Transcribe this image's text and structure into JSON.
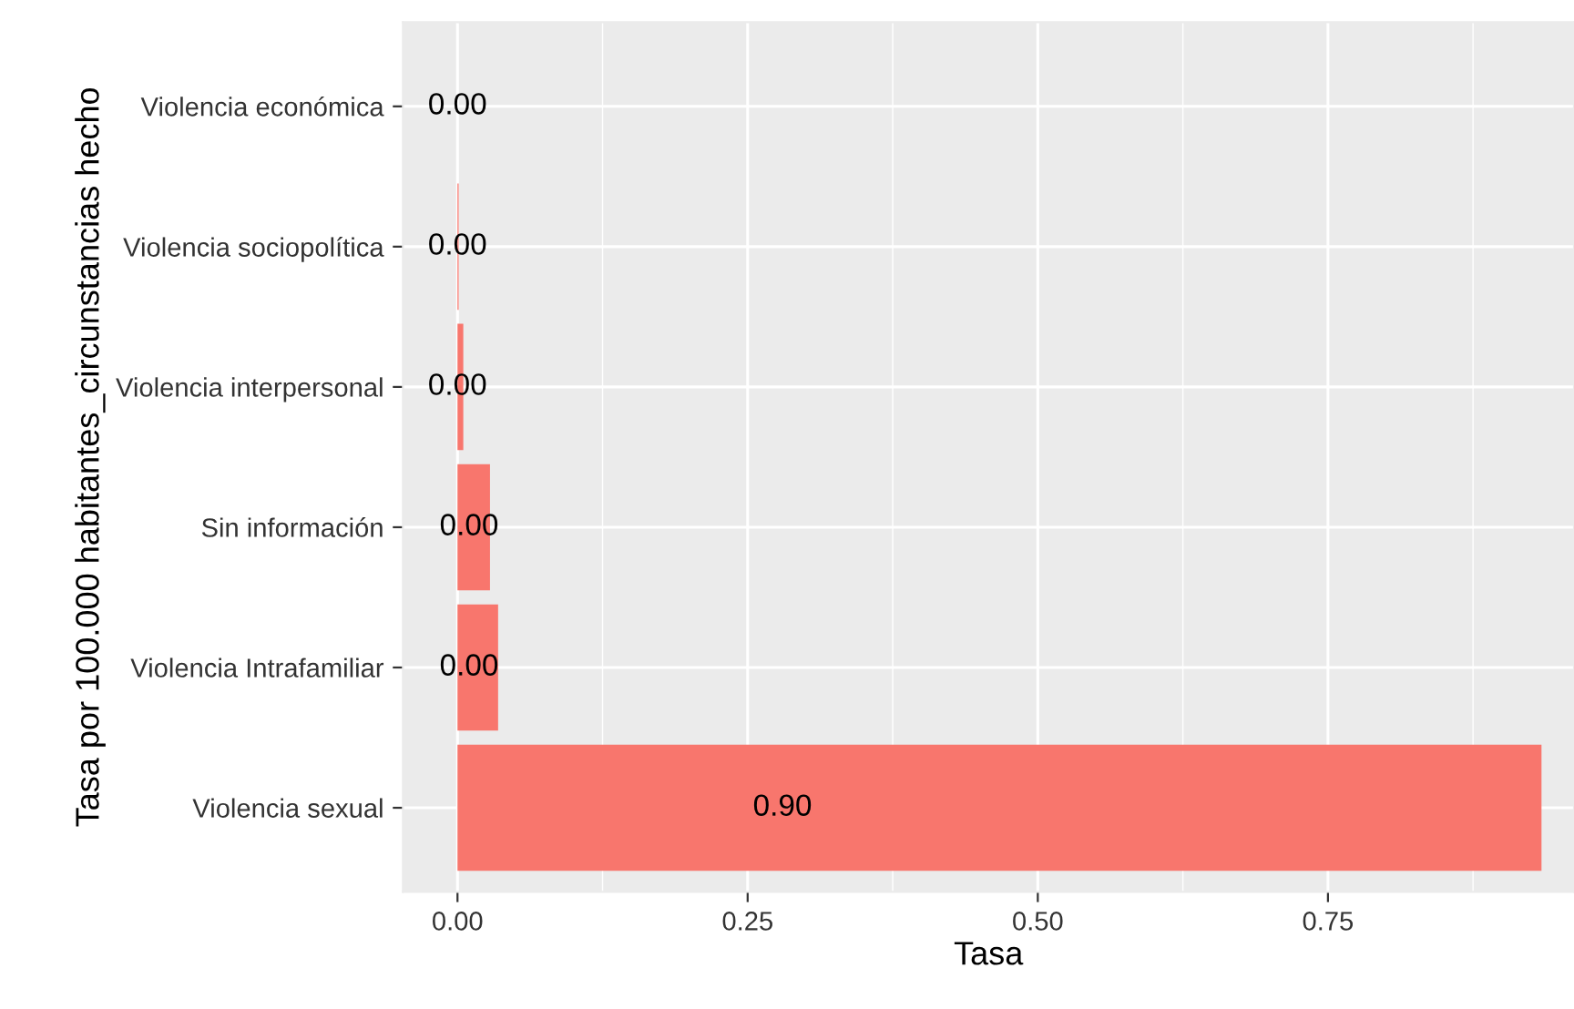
{
  "chart_data": {
    "type": "bar",
    "orientation": "horizontal",
    "xlabel": "Tasa",
    "ylabel": "Tasa por 100.000 habitantes_circunstancias hecho",
    "categories": [
      "Violencia económica",
      "Violencia sociopolítica",
      "Violencia interpersonal",
      "Sin información",
      "Violencia Intrafamiliar",
      "Violencia sexual"
    ],
    "values": [
      0.0,
      0.001,
      0.005,
      0.028,
      0.035,
      0.934
    ],
    "annotations": [
      {
        "text": "0.00",
        "x": 0.0,
        "y": "Violencia económica"
      },
      {
        "text": "0.00",
        "x": 0.0,
        "y": "Violencia sociopolítica"
      },
      {
        "text": "0.00",
        "x": 0.0,
        "y": "Violencia interpersonal"
      },
      {
        "text": "0.00",
        "x": 0.01,
        "y": "Sin información"
      },
      {
        "text": "0.00",
        "x": 0.01,
        "y": "Violencia Intrafamiliar"
      },
      {
        "text": "0.90",
        "x": 0.28,
        "y": "Violencia sexual"
      }
    ],
    "color": "#f8766d",
    "xlim": [
      -0.047,
      0.962
    ],
    "xticks": [
      {
        "value": 0,
        "label": "0.00"
      },
      {
        "value": 0.25,
        "label": "0.25"
      },
      {
        "value": 0.5,
        "label": "0.50"
      },
      {
        "value": 0.75,
        "label": "0.75"
      }
    ],
    "grid": true,
    "legend": false
  }
}
